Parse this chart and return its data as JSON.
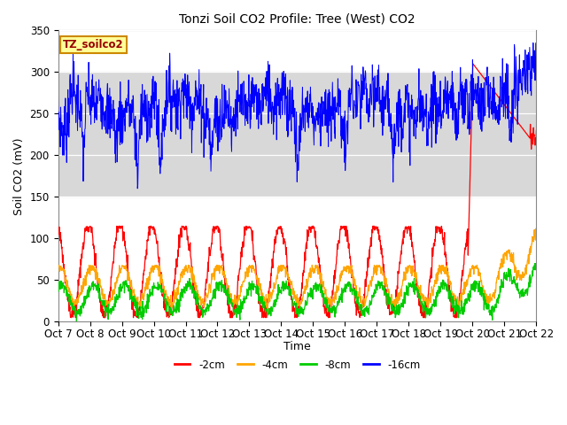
{
  "title": "Tonzi Soil CO2 Profile: Tree (West) CO2",
  "ylabel": "Soil CO2 (mV)",
  "xlabel": "Time",
  "label_box": "TZ_soilco2",
  "ylim": [
    0,
    350
  ],
  "xtick_labels": [
    "Oct 7",
    "Oct 8",
    "Oct 9",
    "Oct 10",
    "Oct 11",
    "Oct 12",
    "Oct 13",
    "Oct 14",
    "Oct 15",
    "Oct 16",
    "Oct 17",
    "Oct 18",
    "Oct 19",
    "Oct 20",
    "Oct 21",
    "Oct 22"
  ],
  "colors": {
    "red": "#ff0000",
    "orange": "#ffa500",
    "green": "#00cc00",
    "blue": "#0000ff"
  },
  "legend": [
    "-2cm",
    "-4cm",
    "-8cm",
    "-16cm"
  ],
  "gray_band_low": 150,
  "gray_band_high": 300,
  "n_points": 1500,
  "seed": 7
}
